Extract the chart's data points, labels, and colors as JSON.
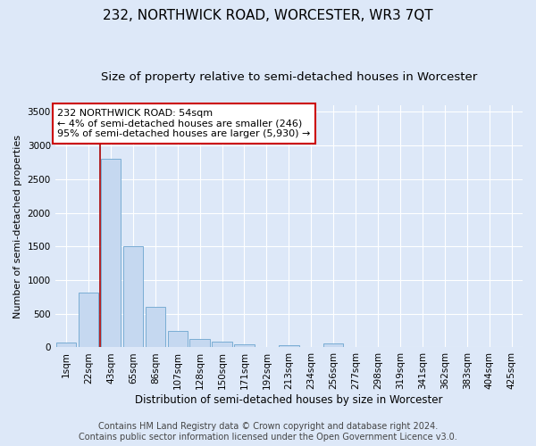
{
  "title": "232, NORTHWICK ROAD, WORCESTER, WR3 7QT",
  "subtitle": "Size of property relative to semi-detached houses in Worcester",
  "xlabel": "Distribution of semi-detached houses by size in Worcester",
  "ylabel": "Number of semi-detached properties",
  "footer_line1": "Contains HM Land Registry data © Crown copyright and database right 2024.",
  "footer_line2": "Contains public sector information licensed under the Open Government Licence v3.0.",
  "annotation_title": "232 NORTHWICK ROAD: 54sqm",
  "annotation_line1": "← 4% of semi-detached houses are smaller (246)",
  "annotation_line2": "95% of semi-detached houses are larger (5,930) →",
  "bar_labels": [
    "1sqm",
    "22sqm",
    "43sqm",
    "65sqm",
    "86sqm",
    "107sqm",
    "128sqm",
    "150sqm",
    "171sqm",
    "192sqm",
    "213sqm",
    "234sqm",
    "256sqm",
    "277sqm",
    "298sqm",
    "319sqm",
    "341sqm",
    "362sqm",
    "383sqm",
    "404sqm",
    "425sqm"
  ],
  "bar_values": [
    70,
    820,
    2800,
    1510,
    600,
    240,
    120,
    80,
    40,
    10,
    30,
    0,
    60,
    0,
    0,
    0,
    0,
    0,
    0,
    0,
    0
  ],
  "bar_color": "#c5d8f0",
  "bar_edge_color": "#7aadd4",
  "vline_color": "#aa0000",
  "vline_x": 1.5,
  "ylim": [
    0,
    3600
  ],
  "yticks": [
    0,
    500,
    1000,
    1500,
    2000,
    2500,
    3000,
    3500
  ],
  "bg_color": "#dde8f8",
  "plot_bg_color": "#dde8f8",
  "grid_color": "#ffffff",
  "annotation_box_color": "#ffffff",
  "annotation_border_color": "#cc0000",
  "title_fontsize": 11,
  "subtitle_fontsize": 9.5,
  "xlabel_fontsize": 8.5,
  "ylabel_fontsize": 8,
  "tick_fontsize": 7.5,
  "annotation_fontsize": 8,
  "footer_fontsize": 7
}
